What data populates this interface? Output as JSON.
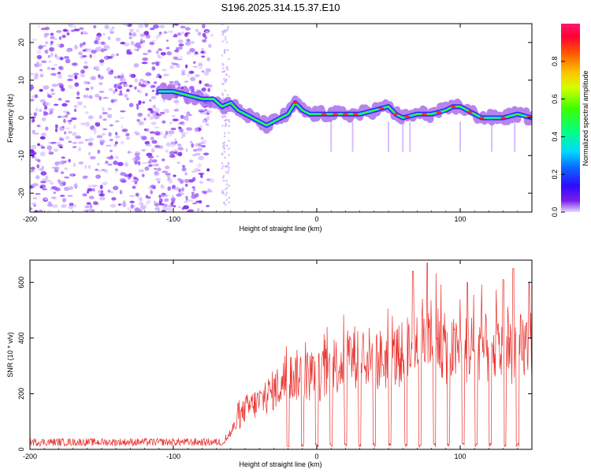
{
  "title": "S196.2025.314.15.37.E10",
  "colors": {
    "snr_line": "#e8302c",
    "ridge_low": "#7a1fe0",
    "ridge_high": "#e8302c",
    "noise": "#9b59ff"
  },
  "chart_data": [
    {
      "type": "heatmap",
      "id": "spectrogram",
      "xlabel": "Height of straight line (km)",
      "ylabel": "Frequency (Hz)",
      "xlim": [
        -200,
        150
      ],
      "ylim": [
        -25,
        25
      ],
      "xticks": [
        -200,
        -100,
        0,
        100
      ],
      "yticks": [
        -20,
        -10,
        0,
        10,
        20
      ],
      "colorbar": {
        "label": "Normalized spectral amplitude",
        "range": [
          0,
          1
        ],
        "ticks": [
          "0.0",
          "0.2",
          "0.4",
          "0.6",
          "0.8"
        ]
      },
      "noise_region_x": [
        -200,
        -73
      ],
      "ridge": {
        "x": [
          -100,
          -90,
          -80,
          -72,
          -66,
          -60,
          -55,
          -50,
          -45,
          -40,
          -35,
          -30,
          -25,
          -20,
          -15,
          -10,
          -5,
          0,
          10,
          20,
          30,
          40,
          50,
          55,
          60,
          70,
          80,
          90,
          95,
          100,
          110,
          115,
          120,
          130,
          140,
          150
        ],
        "freq": [
          7,
          6,
          5,
          5,
          3,
          4,
          2,
          1,
          0,
          -1,
          -2,
          -1,
          0,
          1,
          4,
          2,
          1,
          1,
          1,
          1,
          1,
          2,
          3,
          1,
          0,
          1,
          1,
          2,
          3,
          3,
          1,
          0,
          0,
          0,
          1,
          0
        ]
      }
    },
    {
      "type": "line",
      "id": "snr",
      "xlabel": "Height of straight line (km)",
      "ylabel": "SNR (10 * v/v)",
      "xlim": [
        -200,
        150
      ],
      "ylim": [
        0,
        680
      ],
      "xticks": [
        -200,
        -100,
        0,
        100
      ],
      "yticks": [
        0,
        200,
        400,
        600
      ],
      "envelope": {
        "x": [
          -200,
          -65,
          -60,
          -50,
          -40,
          -30,
          -20,
          -10,
          0,
          10,
          20,
          30,
          40,
          50,
          60,
          70,
          80,
          90,
          100,
          110,
          120,
          130,
          140,
          150
        ],
        "y": [
          25,
          30,
          70,
          170,
          200,
          250,
          300,
          320,
          300,
          340,
          380,
          400,
          380,
          380,
          400,
          470,
          490,
          420,
          410,
          440,
          420,
          420,
          430,
          440
        ]
      },
      "dips_x": [
        -20,
        -10,
        0,
        10,
        20,
        30,
        40,
        51,
        62,
        72,
        82,
        92,
        102,
        111,
        121,
        131,
        140
      ],
      "peaks": [
        {
          "x": 77,
          "y": 670
        },
        {
          "x": 67,
          "y": 640
        },
        {
          "x": 137,
          "y": 650
        },
        {
          "x": 105,
          "y": 600
        },
        {
          "x": 130,
          "y": 610
        },
        {
          "x": 148,
          "y": 600
        }
      ]
    }
  ]
}
